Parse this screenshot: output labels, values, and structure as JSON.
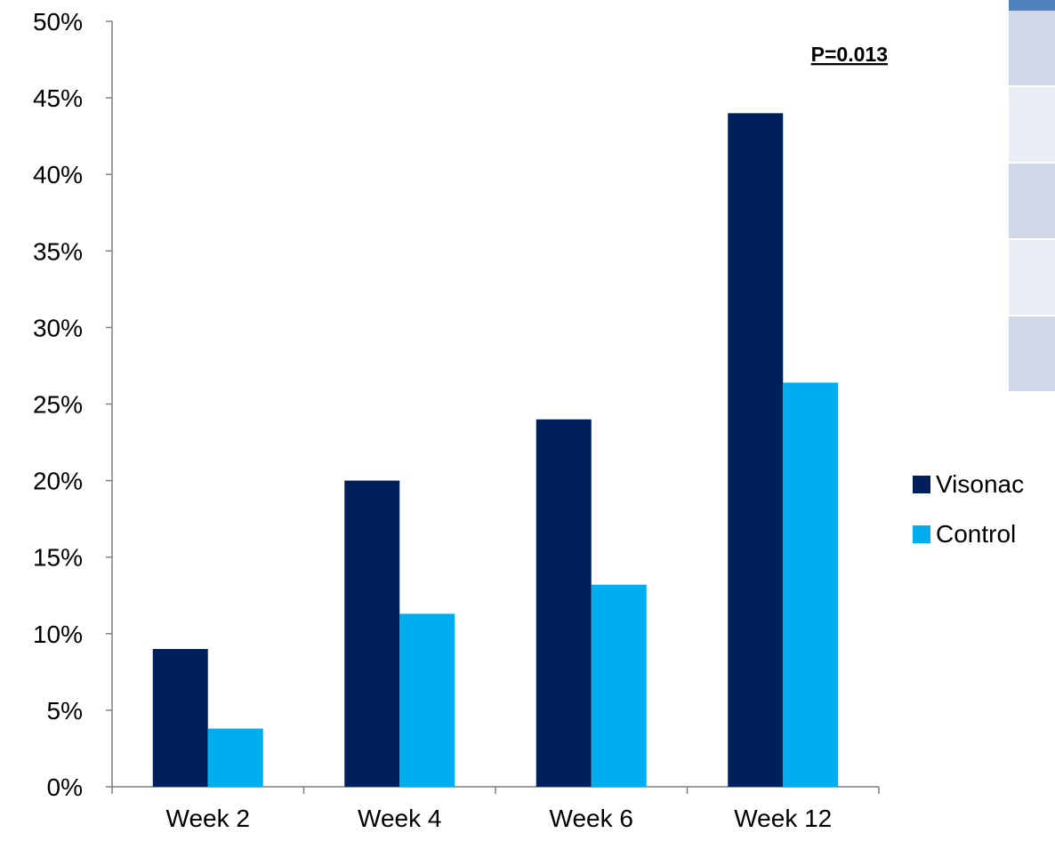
{
  "chart_data": {
    "type": "bar",
    "categories": [
      "Week 2",
      "Week 4",
      "Week 6",
      "Week 12"
    ],
    "series": [
      {
        "name": "Visonac",
        "color": "#00205b",
        "values": [
          9,
          20,
          24,
          44
        ]
      },
      {
        "name": "Control",
        "color": "#00aeef",
        "values": [
          3.8,
          11.3,
          13.2,
          26.4
        ]
      }
    ],
    "y_unit": "%",
    "ylim": [
      0,
      50
    ],
    "ytick_step": 5,
    "annotation": "P=0.013",
    "legend_position": "right",
    "grid": false
  },
  "background_table": {
    "header_color": "#4f81bd",
    "row_colors": [
      "#d0d8e8",
      "#e9edf4",
      "#d0d8e8",
      "#e9edf4",
      "#d0d8e8"
    ]
  }
}
